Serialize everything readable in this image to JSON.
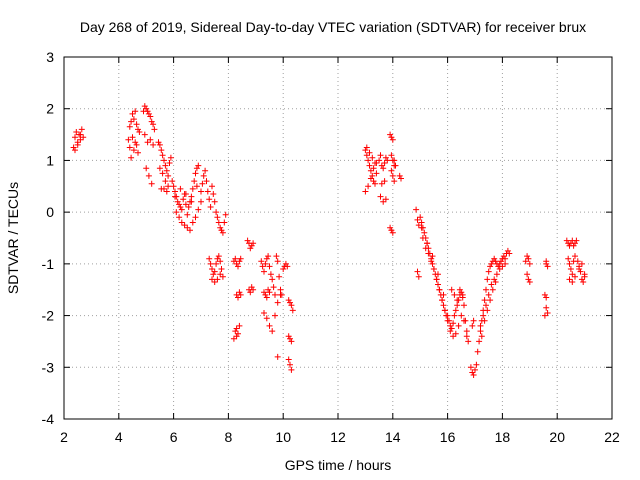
{
  "chart_data": {
    "type": "scatter",
    "title": "Day 268 of 2019, Sidereal Day-to-day VTEC variation (SDTVAR) for receiver brux",
    "xlabel": "GPS time / hours",
    "ylabel": "SDTVAR / TECUs",
    "xlim": [
      2,
      22
    ],
    "ylim": [
      -4,
      3
    ],
    "xticks": [
      "2",
      "4",
      "6",
      "8",
      "10",
      "12",
      "14",
      "16",
      "18",
      "20",
      "22"
    ],
    "yticks": [
      "-4",
      "-3",
      "-2",
      "-1",
      "0",
      "1",
      "2",
      "3"
    ],
    "grid": true,
    "marker": "+",
    "color": "#ff0000",
    "series": [
      {
        "name": "SDTVAR",
        "x": [
          2.35,
          2.4,
          2.45,
          2.5,
          2.55,
          2.6,
          2.65,
          2.7,
          2.4,
          2.5,
          2.6,
          4.35,
          4.4,
          4.45,
          4.5,
          4.55,
          4.6,
          4.65,
          4.7,
          4.75,
          4.4,
          4.5,
          4.6,
          4.7,
          4.45,
          4.55,
          4.65,
          4.9,
          4.95,
          5.0,
          5.05,
          5.1,
          5.15,
          5.2,
          5.25,
          5.3,
          4.95,
          5.05,
          5.15,
          5.25,
          5.0,
          5.1,
          5.2,
          5.45,
          5.5,
          5.55,
          5.6,
          5.65,
          5.7,
          5.75,
          5.8,
          5.85,
          5.9,
          5.5,
          5.6,
          5.7,
          5.8,
          5.55,
          5.65,
          5.75,
          5.95,
          6.0,
          6.05,
          6.1,
          6.15,
          6.2,
          6.25,
          6.3,
          6.35,
          6.4,
          6.45,
          6.5,
          6.55,
          6.6,
          6.65,
          6.7,
          6.75,
          6.8,
          6.85,
          6.9,
          6.1,
          6.2,
          6.3,
          6.4,
          6.5,
          6.6,
          6.7,
          6.8,
          6.9,
          7.0,
          6.05,
          6.25,
          6.45,
          6.65,
          6.85,
          7.0,
          7.05,
          7.1,
          7.15,
          7.2,
          7.25,
          7.3,
          7.35,
          7.4,
          7.45,
          7.5,
          7.55,
          7.6,
          7.65,
          7.7,
          7.75,
          7.8,
          7.85,
          7.9,
          7.3,
          7.35,
          7.4,
          7.45,
          7.5,
          7.55,
          7.6,
          7.65,
          7.7,
          7.75,
          7.8,
          7.4,
          7.5,
          7.6,
          7.7,
          8.2,
          8.25,
          8.3,
          8.35,
          8.4,
          8.45,
          8.3,
          8.35,
          8.4,
          8.45,
          8.25,
          8.3,
          8.35,
          8.2,
          8.3,
          8.4,
          8.7,
          8.75,
          8.8,
          8.85,
          8.9,
          8.75,
          8.8,
          8.85,
          8.9,
          9.2,
          9.25,
          9.3,
          9.35,
          9.4,
          9.45,
          9.5,
          9.55,
          9.6,
          9.65,
          9.7,
          9.75,
          9.8,
          9.85,
          9.9,
          9.95,
          9.3,
          9.35,
          9.4,
          9.45,
          9.5,
          9.3,
          9.4,
          9.5,
          9.6,
          9.7,
          9.8,
          9.9,
          9.8,
          10.0,
          10.05,
          10.1,
          10.15,
          10.2,
          10.25,
          10.3,
          10.35,
          10.2,
          10.25,
          10.3,
          10.2,
          10.25,
          10.3,
          13.0,
          13.05,
          13.1,
          13.15,
          13.2,
          13.25,
          13.3,
          13.35,
          13.4,
          13.0,
          13.1,
          13.2,
          13.3,
          13.4,
          13.05,
          13.15,
          13.25,
          13.35,
          13.5,
          13.55,
          13.6,
          13.65,
          13.7,
          13.75,
          13.8,
          13.55,
          13.65,
          13.75,
          13.6,
          13.7,
          13.9,
          13.95,
          14.0,
          14.05,
          14.1,
          13.95,
          14.0,
          14.05,
          13.9,
          13.95,
          14.0,
          14.25,
          14.3,
          13.95,
          14.0,
          14.05,
          14.85,
          14.9,
          14.95,
          14.9,
          14.95,
          15.0,
          15.05,
          15.1,
          15.15,
          15.2,
          15.25,
          15.3,
          15.35,
          15.4,
          15.45,
          15.5,
          15.55,
          15.6,
          15.65,
          15.7,
          15.75,
          15.8,
          15.85,
          15.9,
          15.95,
          15.1,
          15.2,
          15.3,
          15.4,
          15.5,
          15.6,
          15.7,
          15.8,
          15.9,
          16.0,
          15.05,
          15.25,
          15.45,
          15.65,
          15.85,
          16.0,
          16.05,
          16.1,
          16.15,
          16.2,
          16.25,
          16.3,
          16.35,
          16.4,
          16.45,
          16.5,
          16.55,
          16.6,
          16.65,
          16.7,
          16.75,
          16.1,
          16.2,
          16.3,
          16.4,
          16.5,
          16.6,
          16.7,
          16.15,
          16.25,
          16.35,
          16.45,
          16.55,
          16.85,
          16.9,
          16.95,
          17.0,
          17.05,
          16.9,
          16.95,
          17.1,
          17.15,
          17.2,
          17.25,
          17.3,
          17.35,
          17.4,
          17.45,
          17.5,
          17.55,
          17.6,
          17.65,
          17.7,
          17.75,
          17.8,
          17.85,
          17.9,
          17.95,
          18.0,
          18.05,
          18.1,
          18.15,
          18.2,
          18.25,
          17.2,
          17.3,
          17.4,
          17.5,
          17.6,
          17.7,
          17.8,
          17.9,
          18.0,
          18.1,
          17.25,
          17.35,
          17.45,
          17.55,
          17.65,
          17.75,
          18.85,
          18.9,
          18.95,
          19.0,
          18.9,
          18.95,
          19.0,
          19.55,
          19.6,
          19.65,
          19.6,
          19.65,
          19.6,
          19.55,
          19.6,
          20.35,
          20.4,
          20.45,
          20.5,
          20.55,
          20.6,
          20.65,
          20.7,
          20.4,
          20.45,
          20.5,
          20.55,
          20.6,
          20.65,
          20.45,
          20.55,
          20.65,
          20.75,
          20.8,
          20.85,
          20.9,
          20.95,
          21.0,
          20.8,
          20.9,
          21.0
        ],
        "y": [
          1.25,
          1.45,
          1.55,
          1.3,
          1.5,
          1.4,
          1.6,
          1.45,
          1.2,
          1.35,
          1.5,
          1.4,
          1.65,
          1.75,
          1.9,
          1.8,
          1.95,
          1.7,
          1.6,
          1.55,
          1.25,
          1.45,
          1.35,
          1.15,
          1.05,
          1.2,
          1.3,
          1.95,
          2.05,
          2.0,
          1.95,
          1.9,
          1.85,
          1.75,
          1.7,
          1.6,
          1.5,
          1.35,
          1.4,
          1.3,
          0.85,
          0.7,
          0.55,
          1.35,
          1.3,
          1.2,
          1.1,
          1.0,
          0.9,
          0.8,
          0.7,
          0.95,
          1.05,
          0.85,
          0.75,
          0.6,
          0.5,
          0.45,
          0.45,
          0.4,
          0.6,
          0.5,
          0.4,
          0.3,
          0.2,
          0.15,
          0.1,
          0.05,
          0.25,
          0.35,
          0.15,
          -0.05,
          0.1,
          0.2,
          0.3,
          0.45,
          0.6,
          0.75,
          0.85,
          0.9,
          0.0,
          -0.1,
          -0.2,
          -0.25,
          -0.3,
          -0.35,
          -0.2,
          -0.1,
          0.05,
          0.2,
          0.3,
          0.45,
          0.35,
          0.2,
          0.5,
          0.4,
          0.55,
          0.7,
          0.8,
          0.6,
          0.4,
          0.25,
          0.1,
          0.5,
          0.35,
          0.2,
          0.0,
          -0.1,
          -0.2,
          -0.3,
          -0.35,
          -0.4,
          -0.2,
          -0.05,
          -0.9,
          -1.0,
          -1.1,
          -1.2,
          -1.15,
          -1.0,
          -0.9,
          -0.85,
          -0.95,
          -1.1,
          -1.25,
          -1.3,
          -1.35,
          -1.3,
          -1.2,
          -0.95,
          -0.9,
          -1.0,
          -1.05,
          -0.95,
          -0.9,
          -1.6,
          -1.65,
          -1.55,
          -1.6,
          -2.3,
          -2.25,
          -2.35,
          -2.45,
          -2.4,
          -2.2,
          -0.55,
          -0.6,
          -0.7,
          -0.65,
          -0.6,
          -1.5,
          -1.55,
          -1.45,
          -1.5,
          -0.95,
          -1.05,
          -1.15,
          -1.0,
          -0.9,
          -0.85,
          -1.05,
          -1.2,
          -1.3,
          -1.45,
          -1.6,
          -0.85,
          -0.95,
          -1.25,
          -1.5,
          -1.6,
          -1.55,
          -1.6,
          -1.65,
          -1.5,
          -1.55,
          -1.95,
          -2.05,
          -2.2,
          -2.3,
          -2.0,
          -1.75,
          -1.6,
          -2.8,
          -1.1,
          -1.05,
          -1.0,
          -1.05,
          -1.7,
          -1.75,
          -1.8,
          -1.9,
          -2.4,
          -2.45,
          -2.5,
          -2.85,
          -2.95,
          -3.05,
          1.2,
          1.1,
          1.0,
          0.9,
          0.8,
          0.7,
          0.6,
          0.55,
          0.75,
          0.4,
          0.5,
          0.65,
          0.85,
          0.95,
          1.25,
          1.15,
          1.05,
          0.95,
          1.0,
          1.1,
          0.9,
          0.85,
          0.95,
          1.05,
          1.0,
          0.3,
          0.2,
          0.25,
          0.55,
          0.6,
          1.5,
          1.45,
          1.4,
          1.0,
          0.9,
          0.8,
          0.7,
          0.6,
          -0.3,
          -0.35,
          -0.4,
          0.7,
          0.65,
          1.1,
          1.0,
          0.9,
          0.05,
          -0.15,
          -0.25,
          -1.15,
          -1.25,
          -0.1,
          -0.2,
          -0.3,
          -0.4,
          -0.5,
          -0.6,
          -0.7,
          -0.8,
          -0.9,
          -1.0,
          -1.1,
          -1.2,
          -1.3,
          -1.4,
          -1.5,
          -1.6,
          -1.7,
          -1.8,
          -1.9,
          -2.0,
          -0.5,
          -0.7,
          -0.8,
          -0.95,
          -1.1,
          -1.3,
          -1.5,
          -1.7,
          -1.9,
          -2.1,
          -0.3,
          -0.6,
          -0.85,
          -1.2,
          -1.6,
          -2.0,
          -2.1,
          -2.2,
          -2.25,
          -2.15,
          -2.0,
          -1.9,
          -1.8,
          -1.7,
          -1.6,
          -1.55,
          -1.65,
          -1.8,
          -2.1,
          -2.3,
          -2.5,
          -2.3,
          -2.4,
          -2.35,
          -2.2,
          -2.0,
          -2.1,
          -2.4,
          -1.5,
          -1.6,
          -1.7,
          -1.5,
          -1.6,
          -3.0,
          -3.1,
          -3.15,
          -3.05,
          -2.95,
          -2.2,
          -2.1,
          -2.7,
          -2.5,
          -2.3,
          -2.1,
          -1.9,
          -1.7,
          -1.5,
          -1.3,
          -1.15,
          -1.05,
          -1.0,
          -0.95,
          -0.9,
          -0.95,
          -1.0,
          -1.05,
          -1.0,
          -0.95,
          -0.9,
          -0.85,
          -0.9,
          -0.8,
          -0.75,
          -0.8,
          -2.2,
          -2.0,
          -1.8,
          -1.6,
          -1.4,
          -1.3,
          -1.2,
          -1.1,
          -1.05,
          -1.0,
          -2.4,
          -2.1,
          -1.9,
          -1.7,
          -1.5,
          -1.35,
          -0.95,
          -0.85,
          -0.9,
          -1.0,
          -1.2,
          -1.3,
          -1.35,
          -1.6,
          -1.65,
          -1.95,
          -0.95,
          -1.05,
          -1.85,
          -2.0,
          -1.0,
          -0.55,
          -0.6,
          -0.65,
          -0.6,
          -0.55,
          -0.65,
          -0.6,
          -0.55,
          -0.9,
          -1.0,
          -1.1,
          -1.2,
          -0.95,
          -0.85,
          -1.3,
          -1.35,
          -1.25,
          -0.95,
          -1.05,
          -1.15,
          -1.3,
          -1.35,
          -1.25,
          -1.1,
          -1.0,
          -1.2
        ]
      }
    ]
  }
}
